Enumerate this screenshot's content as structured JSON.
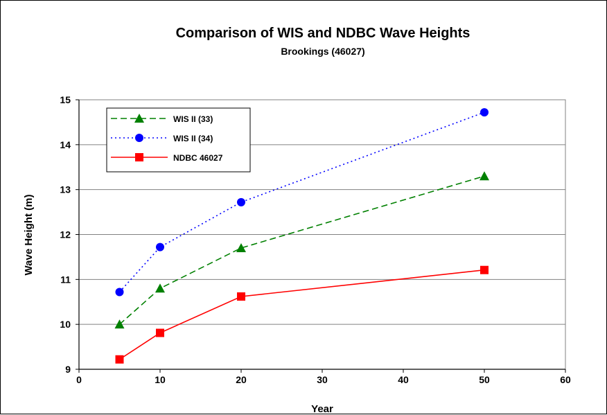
{
  "chart_data": {
    "type": "line",
    "title": "Comparison of WIS and NDBC Wave Heights",
    "subtitle": "Brookings (46027)",
    "xlabel": "Year",
    "ylabel": "Wave Height (m)",
    "xlim": [
      0,
      60
    ],
    "ylim": [
      9,
      15
    ],
    "xticks": [
      0,
      10,
      20,
      30,
      40,
      50,
      60
    ],
    "yticks": [
      9,
      10,
      11,
      12,
      13,
      14,
      15
    ],
    "grid": "horizontal",
    "legend_position": "top-left",
    "series": [
      {
        "name": "WIS II (33)",
        "color": "#008000",
        "marker": "triangle",
        "line_style": "dashed",
        "x": [
          5,
          10,
          20,
          50
        ],
        "y": [
          10.0,
          10.8,
          11.7,
          13.3
        ]
      },
      {
        "name": "WIS II (34)",
        "color": "#0000FF",
        "marker": "circle",
        "line_style": "dotted",
        "x": [
          5,
          10,
          20,
          50
        ],
        "y": [
          10.72,
          11.72,
          12.72,
          14.72
        ]
      },
      {
        "name": "NDBC 46027",
        "color": "#FF0000",
        "marker": "square",
        "line_style": "solid",
        "x": [
          5,
          10,
          20,
          50
        ],
        "y": [
          9.22,
          9.81,
          10.62,
          11.21
        ]
      }
    ]
  }
}
